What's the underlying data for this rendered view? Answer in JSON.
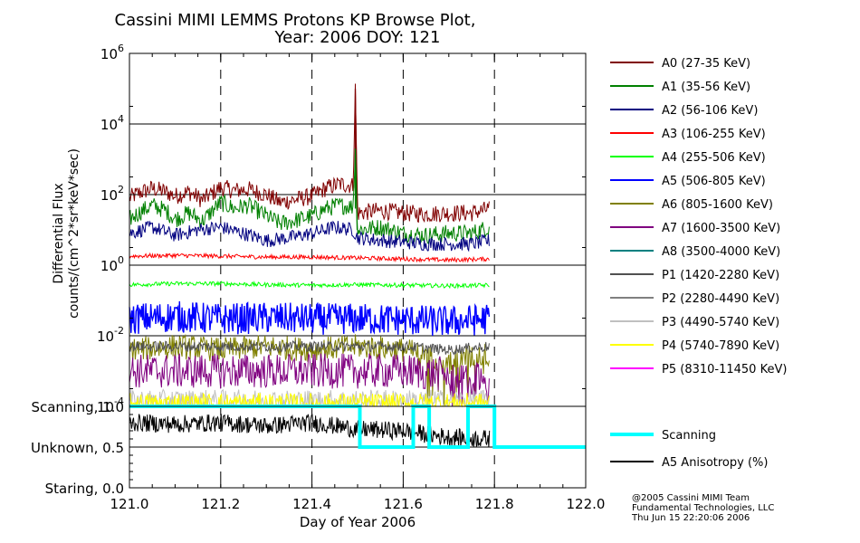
{
  "chart_data": [
    {
      "type": "line",
      "title": "Cassini MIMI LEMMS Protons KP Browse Plot,",
      "subtitle": "Year: 2006 DOY: 121",
      "ylabel_line1": "Differential Flux",
      "ylabel_line2": "counts/(cm^2*sr*keV*sec)",
      "xlim": [
        121.0,
        122.0
      ],
      "ylim": [
        0.0001,
        1000000
      ],
      "yscale": "log",
      "y_ticks": [
        {
          "mantissa": "10",
          "exp": "-4"
        },
        {
          "mantissa": "10",
          "exp": "-2"
        },
        {
          "mantissa": "10",
          "exp": "0"
        },
        {
          "mantissa": "10",
          "exp": "2"
        },
        {
          "mantissa": "10",
          "exp": "4"
        },
        {
          "mantissa": "10",
          "exp": "6"
        }
      ],
      "grid": "major-dashed",
      "legend_position": "right",
      "series": [
        {
          "name": "A0 (27-35 KeV)",
          "color": "#800000",
          "x": [
            121.0,
            121.02,
            121.05,
            121.08,
            121.1,
            121.13,
            121.16,
            121.2,
            121.23,
            121.26,
            121.3,
            121.33,
            121.36,
            121.4,
            121.43,
            121.46,
            121.49,
            121.495,
            121.5,
            121.55,
            121.6,
            121.65,
            121.7,
            121.75,
            121.79
          ],
          "y": [
            80,
            110,
            150,
            120,
            90,
            120,
            70,
            160,
            130,
            140,
            100,
            60,
            70,
            90,
            150,
            200,
            180,
            100000,
            30,
            35,
            30,
            28,
            30,
            30,
            40
          ]
        },
        {
          "name": "A1 (35-56 KeV)",
          "color": "#008000",
          "x": [
            121.0,
            121.02,
            121.05,
            121.08,
            121.1,
            121.13,
            121.16,
            121.2,
            121.23,
            121.26,
            121.3,
            121.33,
            121.36,
            121.4,
            121.43,
            121.46,
            121.49,
            121.495,
            121.5,
            121.55,
            121.6,
            121.65,
            121.7,
            121.75,
            121.79
          ],
          "y": [
            20,
            30,
            50,
            35,
            20,
            30,
            18,
            60,
            40,
            50,
            25,
            15,
            18,
            25,
            40,
            50,
            45,
            2000,
            10,
            12,
            8,
            7,
            8,
            8,
            12
          ]
        },
        {
          "name": "A2 (56-106 KeV)",
          "color": "#000080",
          "x": [
            121.0,
            121.05,
            121.1,
            121.15,
            121.2,
            121.25,
            121.3,
            121.35,
            121.4,
            121.45,
            121.49,
            121.5,
            121.55,
            121.6,
            121.65,
            121.7,
            121.75,
            121.79
          ],
          "y": [
            8,
            12,
            7,
            10,
            12,
            8,
            5,
            6,
            8,
            12,
            10,
            6,
            5,
            4.5,
            4,
            4,
            4,
            5
          ]
        },
        {
          "name": "A3 (106-255 KeV)",
          "color": "#ff0000",
          "x": [
            121.0,
            121.1,
            121.2,
            121.3,
            121.4,
            121.5,
            121.6,
            121.7,
            121.79
          ],
          "y": [
            1.8,
            1.9,
            1.8,
            1.7,
            1.7,
            1.6,
            1.5,
            1.4,
            1.5
          ]
        },
        {
          "name": "A4 (255-506 KeV)",
          "color": "#00ff00",
          "x": [
            121.0,
            121.1,
            121.2,
            121.3,
            121.4,
            121.5,
            121.6,
            121.7,
            121.79
          ],
          "y": [
            0.28,
            0.3,
            0.3,
            0.28,
            0.27,
            0.28,
            0.27,
            0.26,
            0.27
          ]
        },
        {
          "name": "A5 (506-805 KeV)",
          "color": "#0000ff",
          "x": [
            121.0,
            121.1,
            121.2,
            121.3,
            121.4,
            121.5,
            121.6,
            121.7,
            121.79
          ],
          "y": [
            0.03,
            0.035,
            0.03,
            0.032,
            0.03,
            0.03,
            0.028,
            0.025,
            0.03
          ]
        },
        {
          "name": "A6 (805-1600 KeV)",
          "color": "#808000",
          "x": [
            121.0,
            121.1,
            121.2,
            121.3,
            121.4,
            121.5,
            121.6,
            121.7,
            121.79
          ],
          "y": [
            0.004,
            0.005,
            0.004,
            0.005,
            0.004,
            0.005,
            0.004,
            0.002,
            0.003
          ]
        },
        {
          "name": "A7 (1600-3500 KeV)",
          "color": "#800080",
          "x": [
            121.0,
            121.2,
            121.4,
            121.6,
            121.7,
            121.75,
            121.79
          ],
          "y": [
            0.001,
            0.001,
            0.001,
            0.001,
            0.0008,
            0.0005,
            0.0009
          ]
        },
        {
          "name": "A8 (3500-4000 KeV)",
          "color": "#008080",
          "x": [],
          "y": []
        },
        {
          "name": "P1 (1420-2280 KeV)",
          "color": "#505050",
          "x": [
            121.0,
            121.1,
            121.2,
            121.3,
            121.4,
            121.5,
            121.6,
            121.7,
            121.79
          ],
          "y": [
            0.005,
            0.005,
            0.005,
            0.005,
            0.005,
            0.005,
            0.005,
            0.004,
            0.005
          ]
        },
        {
          "name": "P2 (2280-4490 KeV)",
          "color": "#808080",
          "x": [],
          "y": []
        },
        {
          "name": "P3 (4490-5740 KeV)",
          "color": "#c0c0c0",
          "x": [
            121.0,
            121.2,
            121.4,
            121.6,
            121.79
          ],
          "y": [
            0.00015,
            0.00015,
            0.00015,
            0.00015,
            0.00015
          ]
        },
        {
          "name": "P4 (5740-7890 KeV)",
          "color": "#ffff00",
          "x": [
            121.0,
            121.2,
            121.4,
            121.6,
            121.79
          ],
          "y": [
            0.00012,
            0.00012,
            0.00012,
            0.00012,
            0.00012
          ]
        },
        {
          "name": "P5 (8310-11450 KeV)",
          "color": "#ff00ff",
          "x": [],
          "y": []
        }
      ]
    },
    {
      "type": "line",
      "xlabel": "Day of Year 2006",
      "xlim": [
        121.0,
        122.0
      ],
      "ylim": [
        0.0,
        1.0
      ],
      "x_ticks": [
        "121.0",
        "121.2",
        "121.4",
        "121.6",
        "121.8",
        "122.0"
      ],
      "x_tick_values": [
        121.0,
        121.2,
        121.4,
        121.6,
        121.8,
        122.0
      ],
      "y_ticks": [
        {
          "value": 1.0,
          "label": "Scanning, 1.0"
        },
        {
          "value": 0.5,
          "label": "Unknown, 0.5"
        },
        {
          "value": 0.0,
          "label": "Staring, 0.0"
        }
      ],
      "legend_position": "right",
      "series": [
        {
          "name": "Scanning",
          "color": "#00ffff",
          "step": true,
          "x": [
            121.0,
            121.505,
            121.505,
            121.622,
            121.622,
            121.657,
            121.657,
            121.742,
            121.742,
            121.8,
            121.8,
            122.0
          ],
          "y": [
            1.0,
            1.0,
            0.5,
            0.5,
            1.0,
            1.0,
            0.5,
            0.5,
            1.0,
            1.0,
            0.5,
            0.5
          ]
        },
        {
          "name": "A5 Anisotropy (%)",
          "color": "#000000",
          "x": [
            121.0,
            121.1,
            121.2,
            121.3,
            121.4,
            121.5,
            121.6,
            121.7,
            121.79
          ],
          "y": [
            0.8,
            0.78,
            0.8,
            0.76,
            0.8,
            0.72,
            0.7,
            0.62,
            0.6
          ]
        }
      ]
    }
  ],
  "credits": {
    "line1": "@2005 Cassini MIMI Team",
    "line2": "Fundamental Technologies, LLC",
    "line3": "Thu Jun 15 22:20:06 2006"
  }
}
